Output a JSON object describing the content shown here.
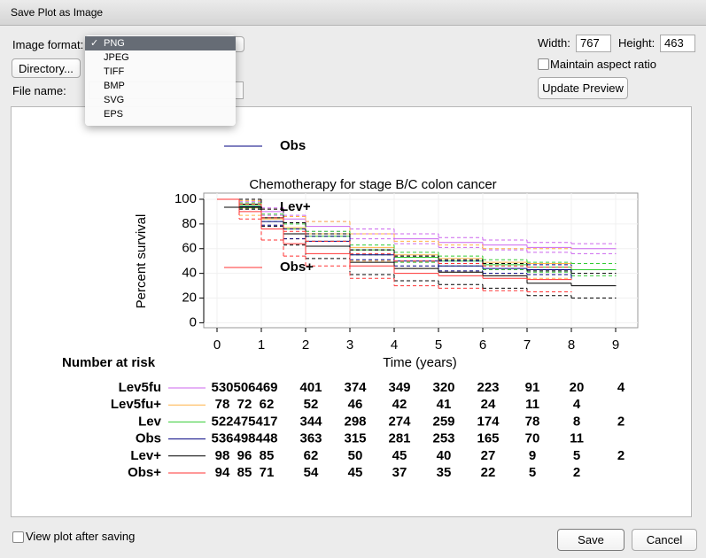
{
  "dialog": {
    "title": "Save Plot as Image",
    "format_label": "Image format:",
    "selected_mark": "✓",
    "formats": [
      "PNG",
      "JPEG",
      "TIFF",
      "BMP",
      "SVG",
      "EPS"
    ],
    "directory_button": "Directory...",
    "file_name_label": "File name:",
    "width_label": "Width:",
    "width": 767,
    "height_label": "Height:",
    "height": 463,
    "aspect_label": "Maintain aspect ratio",
    "update_button": "Update Preview",
    "view_label": "View plot after saving",
    "save_button": "Save",
    "cancel_button": "Cancel"
  },
  "chart_data": {
    "type": "step",
    "title": "Chemotherapy for stage B/C colon cancer",
    "xlabel": "Time (years)",
    "ylabel": "Percent survival",
    "xlim": [
      -0.3,
      9.5
    ],
    "ylim": [
      -4,
      105
    ],
    "xticks": [
      0,
      1,
      2,
      3,
      4,
      5,
      6,
      7,
      8,
      9
    ],
    "yticks": [
      0,
      20,
      40,
      60,
      80,
      100
    ],
    "x": [
      0,
      0.5,
      1,
      1.5,
      2,
      3,
      4,
      5,
      6,
      7,
      8,
      9
    ],
    "risk_title": "Number at risk",
    "risk_times": [
      0,
      0.5,
      1,
      2,
      3,
      4,
      5,
      6,
      7,
      8,
      9
    ],
    "series": [
      {
        "name": "Lev5fu",
        "color": "#cc66ee",
        "legend": false,
        "values": [
          100,
          96,
          90,
          84,
          78,
          72,
          68,
          65,
          63,
          61,
          60,
          60
        ],
        "ci_lower": [
          100,
          94,
          87,
          81,
          74,
          68,
          64,
          61,
          59,
          57,
          56,
          56
        ],
        "ci_upper": [
          100,
          98,
          93,
          87,
          82,
          76,
          72,
          69,
          67,
          65,
          64,
          64
        ],
        "at_risk": [
          530,
          506,
          469,
          401,
          374,
          349,
          320,
          223,
          91,
          20,
          4
        ]
      },
      {
        "name": "Lev5fu+",
        "color": "#ffb347",
        "legend": false,
        "values": [
          100,
          93,
          84,
          77,
          72,
          61,
          55,
          52,
          49,
          48,
          48,
          null
        ],
        "ci_lower": [
          100,
          87,
          76,
          68,
          62,
          50,
          44,
          41,
          38,
          36,
          36,
          null
        ],
        "ci_upper": [
          100,
          99,
          92,
          86,
          82,
          72,
          66,
          63,
          60,
          60,
          60,
          null
        ],
        "at_risk": [
          78,
          72,
          62,
          52,
          46,
          42,
          41,
          24,
          11,
          4,
          null
        ]
      },
      {
        "name": "Lev",
        "color": "#33cc33",
        "legend": false,
        "values": [
          100,
          95,
          85,
          76,
          70,
          59,
          53,
          50,
          47,
          45,
          43,
          43
        ],
        "ci_lower": [
          100,
          93,
          82,
          72,
          66,
          55,
          49,
          46,
          43,
          41,
          38,
          38
        ],
        "ci_upper": [
          100,
          97,
          88,
          80,
          74,
          63,
          57,
          54,
          51,
          49,
          48,
          48
        ],
        "at_risk": [
          522,
          475,
          417,
          344,
          298,
          274,
          259,
          174,
          78,
          8,
          2
        ]
      },
      {
        "name": "Obs",
        "color": "#000080",
        "legend": true,
        "values": [
          100,
          94,
          82,
          72,
          66,
          55,
          50,
          46,
          44,
          43,
          41,
          null
        ],
        "ci_lower": [
          100,
          92,
          79,
          68,
          62,
          51,
          46,
          42,
          40,
          39,
          36,
          null
        ],
        "ci_upper": [
          100,
          96,
          85,
          76,
          70,
          59,
          54,
          50,
          48,
          47,
          46,
          null
        ],
        "at_risk": [
          536,
          498,
          448,
          363,
          315,
          281,
          253,
          165,
          70,
          11,
          null
        ]
      },
      {
        "name": "Lev+",
        "color": "#000000",
        "legend": true,
        "values": [
          100,
          96,
          85,
          72,
          62,
          49,
          44,
          41,
          38,
          32,
          30,
          30
        ],
        "ci_lower": [
          100,
          92,
          78,
          63,
          52,
          39,
          34,
          31,
          28,
          22,
          20,
          20
        ],
        "ci_upper": [
          100,
          100,
          92,
          81,
          72,
          59,
          54,
          51,
          48,
          42,
          40,
          40
        ],
        "at_risk": [
          98,
          96,
          85,
          62,
          50,
          45,
          40,
          27,
          9,
          5,
          2
        ]
      },
      {
        "name": "Obs+",
        "color": "#ff3333",
        "legend": true,
        "values": [
          100,
          90,
          76,
          64,
          56,
          46,
          40,
          38,
          36,
          35,
          35,
          null
        ],
        "ci_lower": [
          100,
          84,
          67,
          54,
          46,
          36,
          30,
          28,
          26,
          25,
          25,
          null
        ],
        "ci_upper": [
          100,
          96,
          85,
          74,
          66,
          56,
          50,
          48,
          46,
          45,
          45,
          null
        ],
        "at_risk": [
          94,
          85,
          71,
          54,
          45,
          37,
          35,
          22,
          5,
          2,
          null
        ]
      }
    ]
  }
}
